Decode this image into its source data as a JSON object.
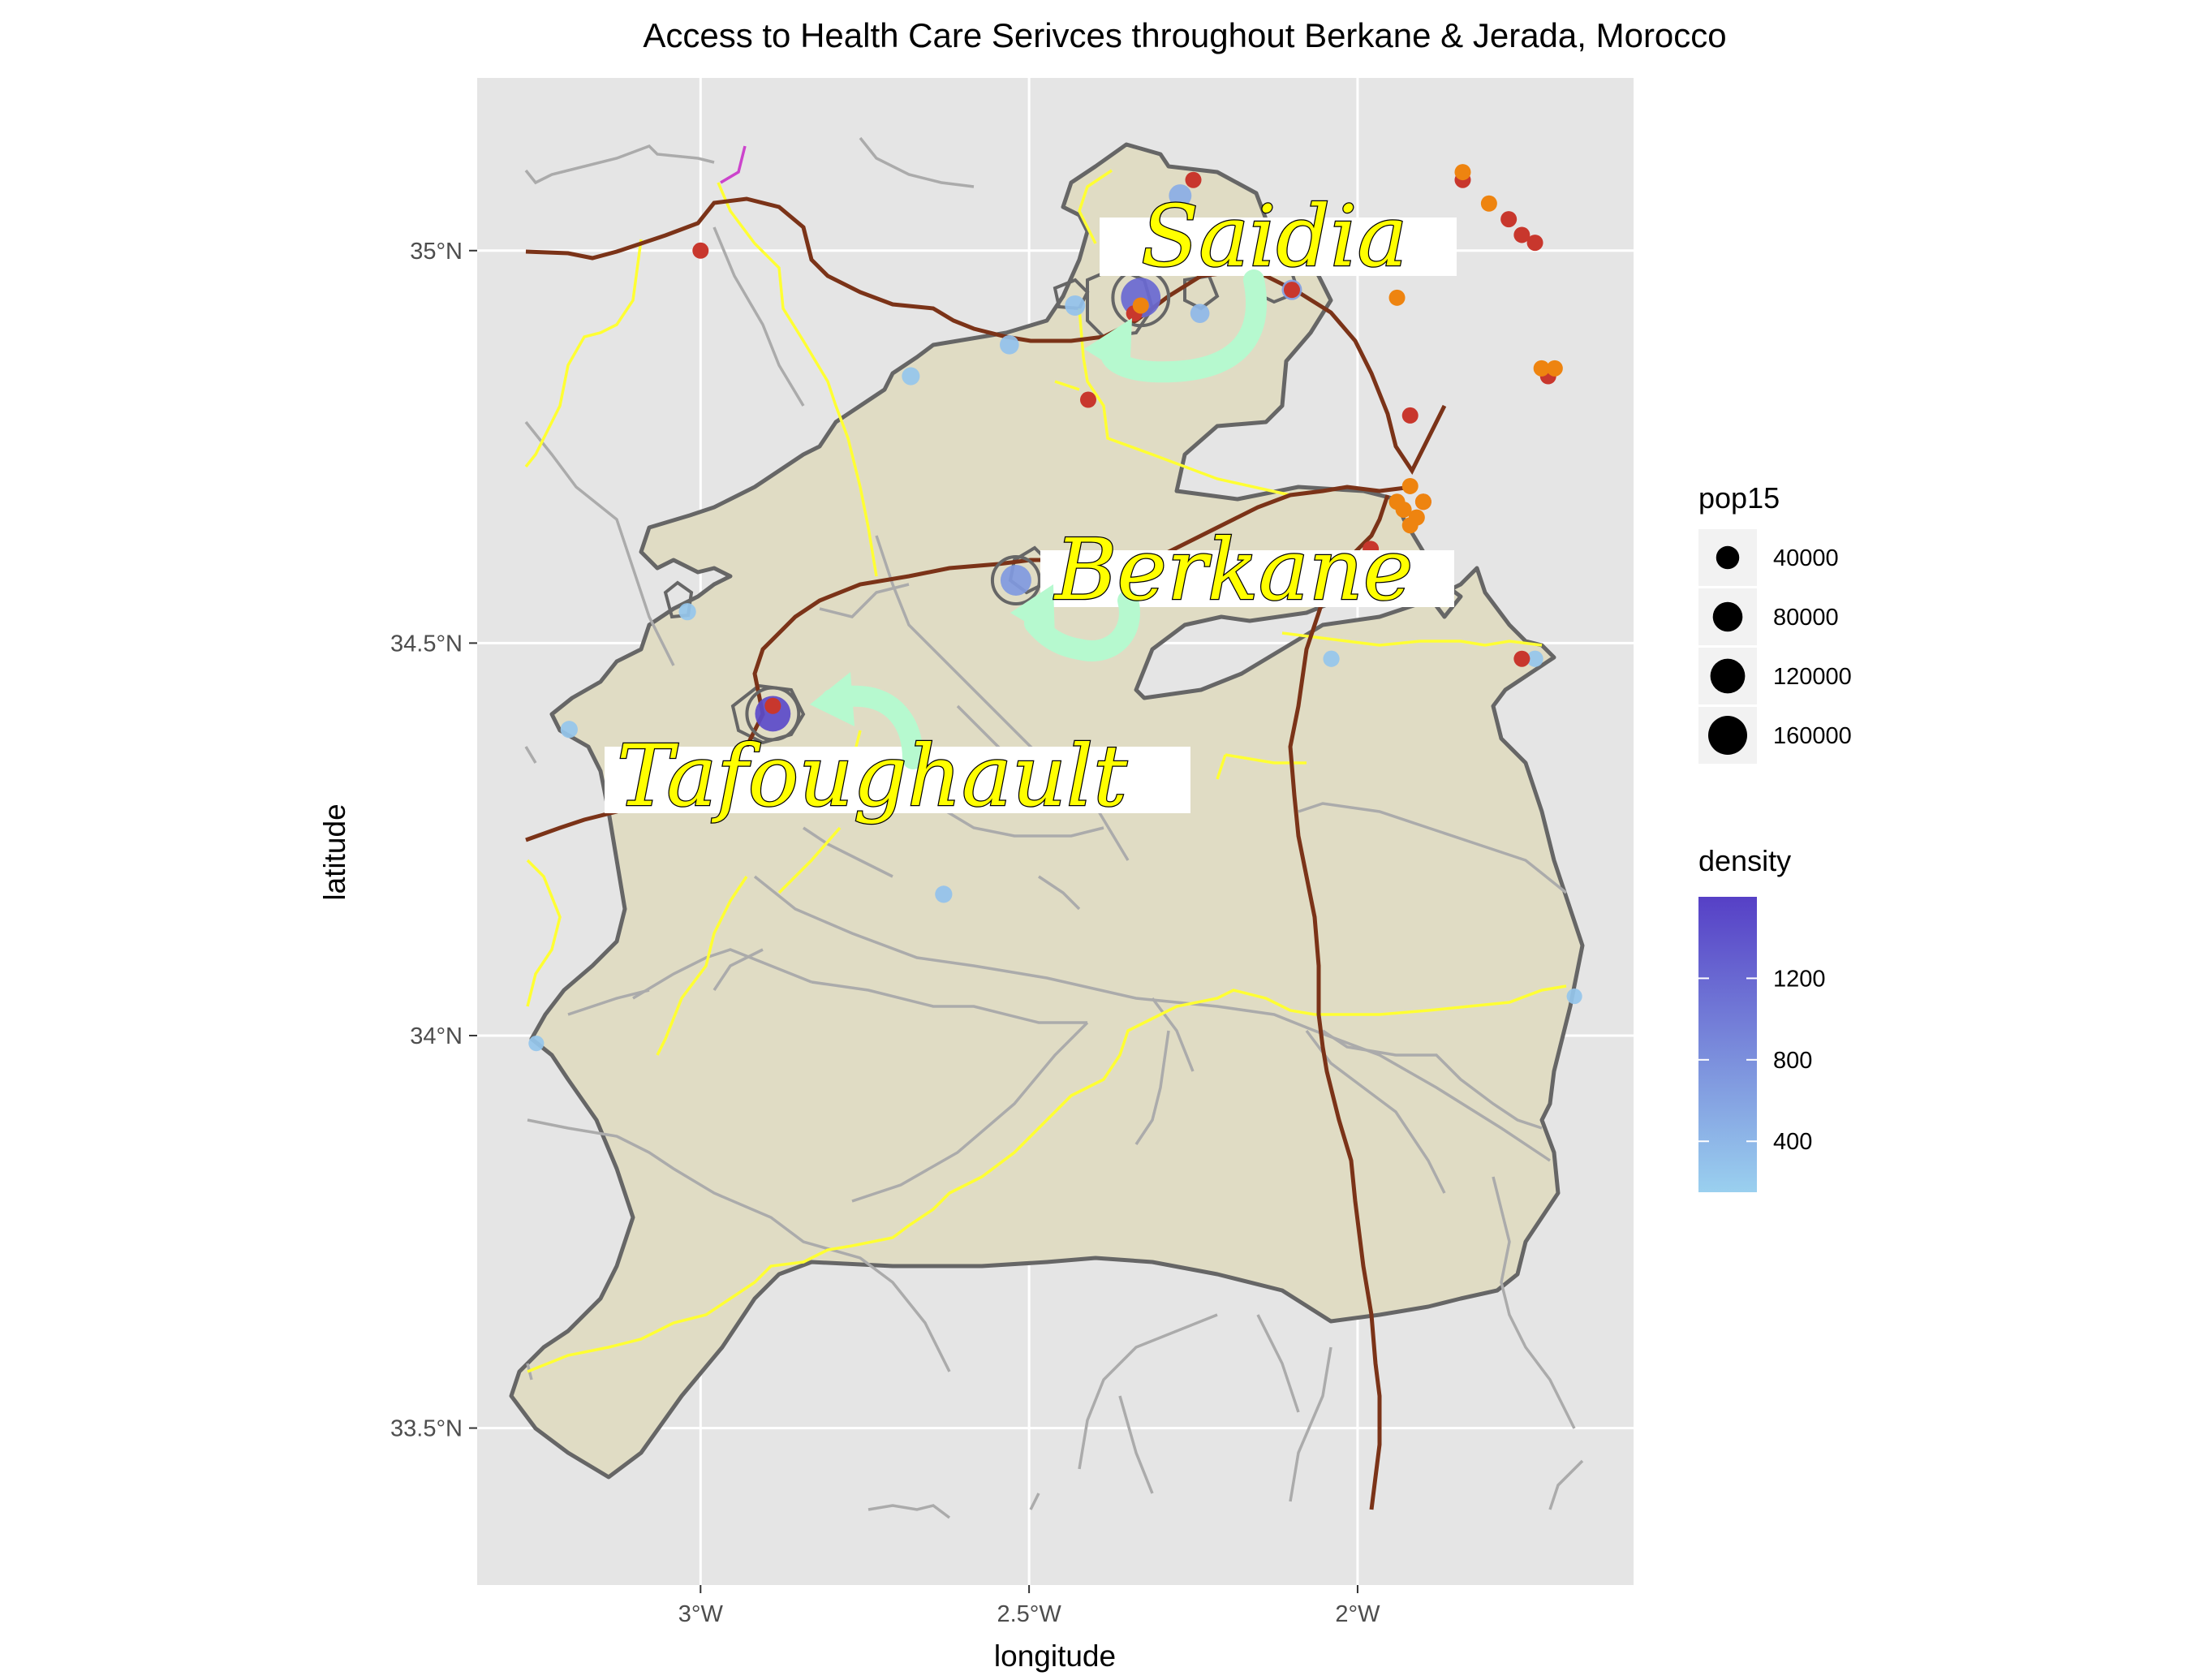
{
  "chart_data": {
    "type": "map",
    "title": "Access to Health Care Serivces throughout Berkane & Jerada, Morocco",
    "xlabel": "longitude",
    "ylabel": "latitude",
    "xlim": [
      -3.34,
      -1.58
    ],
    "ylim": [
      33.3,
      35.22
    ],
    "grid": true,
    "x_ticks": [
      {
        "value": -3.0,
        "label": "3°W"
      },
      {
        "value": -2.5,
        "label": "2.5°W"
      },
      {
        "value": -2.0,
        "label": "2°W"
      }
    ],
    "y_ticks": [
      {
        "value": 33.5,
        "label": "33.5°N"
      },
      {
        "value": 34.0,
        "label": "34°N"
      },
      {
        "value": 34.5,
        "label": "34.5°N"
      },
      {
        "value": 35.0,
        "label": "35°N"
      }
    ],
    "colors": {
      "panel": "#e5e5e5",
      "region_fill": "#e0dcc4",
      "region_border": "#666666",
      "primary_road": "#7b3318",
      "secondary_road": "#ffff33",
      "tertiary_road": "#ababab",
      "health_facility": "#c8372d",
      "pharmacy": "#ee8410",
      "arrow": "#b6f9cf",
      "label_text": "#ffff00"
    },
    "annotations": [
      {
        "text": "Saidia",
        "lon": -2.19,
        "lat": 34.98,
        "arrow_to": [
          -2.39,
          34.88
        ]
      },
      {
        "text": "Berkane",
        "lon": -2.32,
        "lat": 34.57,
        "arrow_to": [
          -2.49,
          34.52
        ]
      },
      {
        "text": "Tafoughault",
        "lon": -2.7,
        "lat": 34.3,
        "arrow_to": [
          -2.82,
          34.43
        ]
      }
    ],
    "towns": [
      {
        "lon": -2.33,
        "lat": 34.94,
        "pop15": 80000,
        "density": 1200
      },
      {
        "lon": -2.52,
        "lat": 34.58,
        "pop15": 40000,
        "density": 700
      },
      {
        "lon": -2.89,
        "lat": 34.41,
        "pop15": 60000,
        "density": 1500
      },
      {
        "lon": -2.27,
        "lat": 35.07,
        "pop15": 15000,
        "density": 500
      },
      {
        "lon": -2.43,
        "lat": 34.93,
        "pop15": 10000,
        "density": 300
      },
      {
        "lon": -2.24,
        "lat": 34.92,
        "pop15": 8000,
        "density": 400
      },
      {
        "lon": -2.1,
        "lat": 34.95,
        "pop15": 10000,
        "density": 650
      },
      {
        "lon": -2.53,
        "lat": 34.88,
        "pop15": 8000,
        "density": 300
      },
      {
        "lon": -2.68,
        "lat": 34.84,
        "pop15": 6000,
        "density": 250
      },
      {
        "lon": -3.02,
        "lat": 34.54,
        "pop15": 5000,
        "density": 250
      },
      {
        "lon": -3.2,
        "lat": 34.39,
        "pop15": 5000,
        "density": 250
      },
      {
        "lon": -2.63,
        "lat": 34.18,
        "pop15": 5000,
        "density": 300
      },
      {
        "lon": -2.04,
        "lat": 34.48,
        "pop15": 4000,
        "density": 250
      },
      {
        "lon": -1.73,
        "lat": 34.48,
        "pop15": 4000,
        "density": 250
      },
      {
        "lon": -1.67,
        "lat": 34.05,
        "pop15": 3000,
        "density": 250
      },
      {
        "lon": -3.25,
        "lat": 33.99,
        "pop15": 3000,
        "density": 250
      }
    ],
    "health_facilities": [
      [
        -3.0,
        35.0
      ],
      [
        -2.25,
        35.09
      ],
      [
        -2.34,
        34.92
      ],
      [
        -2.41,
        34.81
      ],
      [
        -2.1,
        34.95
      ],
      [
        -1.92,
        34.79
      ],
      [
        -1.98,
        34.62
      ],
      [
        -1.9,
        34.68
      ],
      [
        -1.84,
        35.09
      ],
      [
        -1.77,
        35.04
      ],
      [
        -1.75,
        35.02
      ],
      [
        -1.73,
        35.01
      ],
      [
        -1.71,
        34.84
      ],
      [
        -1.75,
        34.48
      ],
      [
        -2.89,
        34.42
      ]
    ],
    "pharmacies": [
      [
        -2.33,
        34.93
      ],
      [
        -1.84,
        35.1
      ],
      [
        -1.8,
        35.06
      ],
      [
        -1.94,
        34.94
      ],
      [
        -1.72,
        34.85
      ],
      [
        -1.7,
        34.85
      ],
      [
        -1.93,
        34.67
      ],
      [
        -1.91,
        34.66
      ],
      [
        -1.9,
        34.68
      ],
      [
        -1.92,
        34.65
      ],
      [
        -1.94,
        34.68
      ],
      [
        -1.92,
        34.7
      ]
    ],
    "legend": {
      "size": {
        "title": "pop15",
        "entries": [
          {
            "label": "40000",
            "value": 40000
          },
          {
            "label": "80000",
            "value": 80000
          },
          {
            "label": "120000",
            "value": 120000
          },
          {
            "label": "160000",
            "value": 160000
          }
        ]
      },
      "color": {
        "title": "density",
        "range": [
          150,
          1600
        ],
        "low_color": "#9ad0ef",
        "high_color": "#5640c6",
        "ticks": [
          {
            "label": "400",
            "value": 400
          },
          {
            "label": "800",
            "value": 800
          },
          {
            "label": "1200",
            "value": 1200
          }
        ]
      },
      "position": "right"
    }
  }
}
